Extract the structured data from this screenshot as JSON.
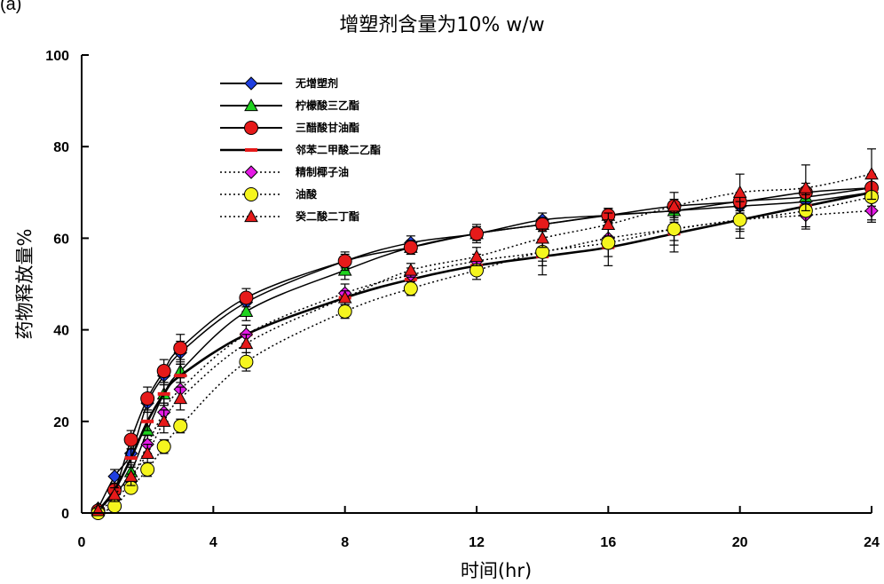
{
  "figure": {
    "panel_label": "(a)"
  },
  "chart_data": {
    "type": "line",
    "title": "增塑剂含量为10% w/w",
    "xlabel": "时间(hr)",
    "ylabel": "药物释放量%",
    "xlim": [
      0,
      24
    ],
    "ylim": [
      0,
      100
    ],
    "x_ticks": [
      0,
      4,
      8,
      12,
      16,
      20,
      24
    ],
    "y_ticks": [
      0,
      20,
      40,
      60,
      80,
      100
    ],
    "grid": false,
    "legend_position": "top-left",
    "x": [
      0.5,
      1,
      1.5,
      2,
      2.5,
      3,
      5,
      8,
      10,
      12,
      14,
      16,
      18,
      20,
      22,
      24
    ],
    "series": [
      {
        "name": "无增塑剂",
        "marker": "diamond",
        "color": "#1f3fe0",
        "line": "solid",
        "values": [
          1,
          8,
          13,
          24,
          30,
          35,
          46,
          55,
          59,
          61,
          64,
          65,
          66,
          67,
          68,
          70
        ],
        "errors": [
          0.5,
          1.5,
          2,
          2,
          2,
          2.5,
          2,
          1.5,
          1.5,
          2,
          1.5,
          1.5,
          1.5,
          1.5,
          1.5,
          2
        ]
      },
      {
        "name": "柠檬酸三乙酯",
        "marker": "triangle",
        "color": "#1ed21e",
        "line": "solid",
        "values": [
          1,
          4,
          9,
          18,
          26,
          31,
          44,
          53,
          58,
          61,
          63,
          65,
          66,
          68,
          69,
          71
        ],
        "errors": [
          0.5,
          1,
          1.5,
          2,
          2,
          2.5,
          2,
          2,
          1.5,
          1.5,
          1.5,
          1.5,
          1.5,
          1.5,
          1.5,
          2
        ]
      },
      {
        "name": "三醋酸甘油酯",
        "marker": "circle",
        "color": "#e61a1a",
        "line": "solid",
        "values": [
          0.5,
          5,
          16,
          25,
          31,
          36,
          47,
          55,
          58,
          61,
          63,
          65,
          67,
          68,
          70,
          71
        ],
        "errors": [
          0.5,
          1.5,
          2,
          2.5,
          2.5,
          3,
          2,
          2,
          1.5,
          1.5,
          1.5,
          1.5,
          1.5,
          2,
          2,
          2
        ]
      },
      {
        "name": "邻苯二甲酸二乙酯",
        "marker": "dash",
        "color": "#e61a1a",
        "line": "solid-bold",
        "values": [
          0.5,
          5,
          12,
          20,
          26,
          30,
          39,
          47,
          51,
          54,
          56,
          58,
          61,
          64,
          67,
          70
        ],
        "errors": [
          0.5,
          1.5,
          2,
          2,
          2.5,
          2.5,
          2,
          1.5,
          1.5,
          1.5,
          2,
          2,
          2.5,
          2.5,
          2.5,
          3
        ]
      },
      {
        "name": "精制椰子油",
        "marker": "diamond",
        "color": "#e61ae6",
        "line": "dotted",
        "values": [
          0.5,
          3,
          7,
          15,
          22,
          27,
          39,
          48,
          52,
          55,
          57,
          60,
          62,
          64,
          65,
          66
        ],
        "errors": [
          0.5,
          1,
          1.5,
          2,
          2,
          2.5,
          2,
          2,
          1.5,
          1.5,
          2,
          2,
          2.5,
          2,
          2.5,
          2.5
        ]
      },
      {
        "name": "油酸",
        "marker": "circle",
        "color": "#f5f51e",
        "line": "dotted",
        "values": [
          0,
          1.5,
          5.5,
          9.5,
          14.5,
          19,
          33,
          44,
          49,
          53,
          57,
          59,
          62,
          64,
          66,
          69
        ],
        "errors": [
          0.5,
          1,
          1,
          1.5,
          1.5,
          1.5,
          2,
          1.5,
          1.5,
          2,
          5,
          5,
          5,
          4,
          4,
          5
        ]
      },
      {
        "name": "癸二酸二丁酯",
        "marker": "triangle",
        "color": "#e61a1a",
        "line": "dotted",
        "values": [
          0.5,
          4,
          8,
          13,
          20,
          25,
          37,
          47,
          53,
          56,
          60,
          63,
          67,
          70,
          71,
          74
        ],
        "errors": [
          0.5,
          1.5,
          2,
          2,
          2.5,
          2.5,
          2,
          1.5,
          1.5,
          2,
          2,
          2.5,
          3,
          4,
          5,
          5.5
        ]
      }
    ]
  }
}
